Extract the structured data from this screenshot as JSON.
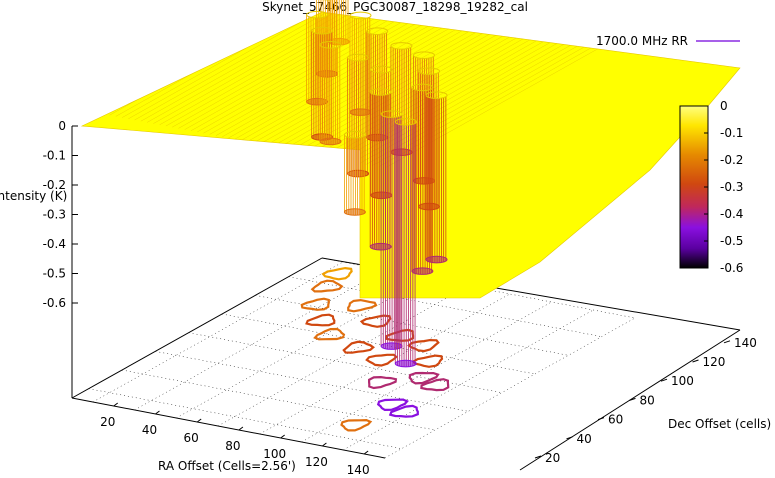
{
  "chart_data": {
    "type": "surface3d",
    "title": "Skynet_57466_PGC30087_18298_19282_cal",
    "xlabel": "RA Offset (Cells=2.56')",
    "ylabel": "Dec Offset (cells)",
    "zlabel": "Intensity (K)",
    "xlim": [
      0,
      150
    ],
    "ylim": [
      10,
      150
    ],
    "zlim": [
      -0.6,
      0
    ],
    "x_ticks": [
      "20",
      "40",
      "60",
      "80",
      "100",
      "120",
      "140"
    ],
    "y_ticks": [
      "20",
      "40",
      "60",
      "80",
      "100",
      "120",
      "140"
    ],
    "z_ticks": [
      "0",
      "-0.1",
      "-0.2",
      "-0.3",
      "-0.4",
      "-0.5",
      "-0.6"
    ],
    "colorbar": {
      "ticks": [
        "0",
        "-0.1",
        "-0.2",
        "-0.3",
        "-0.4",
        "-0.5",
        "-0.6"
      ],
      "range": [
        -0.6,
        0
      ],
      "palette": [
        "#000000",
        "#5a00a0",
        "#8a10e0",
        "#c0285a",
        "#d04810",
        "#e68a00",
        "#ffe600",
        "#ffff80"
      ]
    },
    "legend": {
      "label": "1700.0 MHz RR",
      "position": "top-right",
      "color": "#8a2be2"
    },
    "surface_color": "#ffff00",
    "wells": [
      {
        "x": 128,
        "y": 40,
        "depth": -0.5
      },
      {
        "x": 118,
        "y": 44,
        "depth": -0.48
      },
      {
        "x": 122,
        "y": 66,
        "depth": -0.34
      },
      {
        "x": 112,
        "y": 70,
        "depth": -0.38
      },
      {
        "x": 100,
        "y": 60,
        "depth": -0.32
      },
      {
        "x": 104,
        "y": 84,
        "depth": -0.28
      },
      {
        "x": 92,
        "y": 96,
        "depth": -0.26
      },
      {
        "x": 86,
        "y": 78,
        "depth": -0.26
      },
      {
        "x": 78,
        "y": 100,
        "depth": -0.22
      },
      {
        "x": 70,
        "y": 84,
        "depth": -0.24
      },
      {
        "x": 60,
        "y": 108,
        "depth": -0.22
      },
      {
        "x": 52,
        "y": 90,
        "depth": -0.2
      },
      {
        "x": 44,
        "y": 118,
        "depth": -0.2
      },
      {
        "x": 40,
        "y": 100,
        "depth": -0.22
      },
      {
        "x": 28,
        "y": 112,
        "depth": -0.18
      },
      {
        "x": 20,
        "y": 128,
        "depth": -0.16
      },
      {
        "x": 118,
        "y": 22,
        "depth": -0.16
      },
      {
        "x": 16,
        "y": 140,
        "depth": -0.12
      }
    ]
  }
}
